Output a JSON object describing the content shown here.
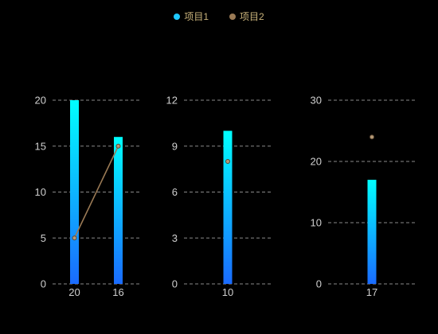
{
  "legend": {
    "items": [
      {
        "label": "项目1",
        "color": "#1ec8ff"
      },
      {
        "label": "项目2",
        "color": "#9a7a55"
      }
    ],
    "text_color": "#c8b27a"
  },
  "colors": {
    "background": "#000000",
    "bar_top": "#00ffff",
    "bar_bottom": "#1a6bff",
    "line": "#9a7a55",
    "marker_fill": "#b59a78",
    "grid": "#8a8a8a",
    "tick_text": "#cfcfcf"
  },
  "chart_data": [
    {
      "type": "bar",
      "categories": [
        "20",
        "16"
      ],
      "series": [
        {
          "name": "项目1",
          "type": "bar",
          "values": [
            20,
            16
          ]
        },
        {
          "name": "项目2",
          "type": "line",
          "values": [
            5,
            15
          ]
        }
      ],
      "ylim": [
        0,
        20
      ],
      "yticks": [
        0,
        5,
        10,
        15,
        20
      ],
      "grid": true
    },
    {
      "type": "bar",
      "categories": [
        "10"
      ],
      "series": [
        {
          "name": "项目1",
          "type": "bar",
          "values": [
            10
          ]
        },
        {
          "name": "项目2",
          "type": "line",
          "values": [
            8
          ]
        }
      ],
      "ylim": [
        0,
        12
      ],
      "yticks": [
        0,
        3,
        6,
        9,
        12
      ],
      "grid": true
    },
    {
      "type": "bar",
      "categories": [
        "17"
      ],
      "series": [
        {
          "name": "项目1",
          "type": "bar",
          "values": [
            17
          ]
        },
        {
          "name": "项目2",
          "type": "line",
          "values": [
            24
          ]
        }
      ],
      "ylim": [
        0,
        30
      ],
      "yticks": [
        0,
        10,
        20,
        30
      ],
      "grid": true
    }
  ]
}
